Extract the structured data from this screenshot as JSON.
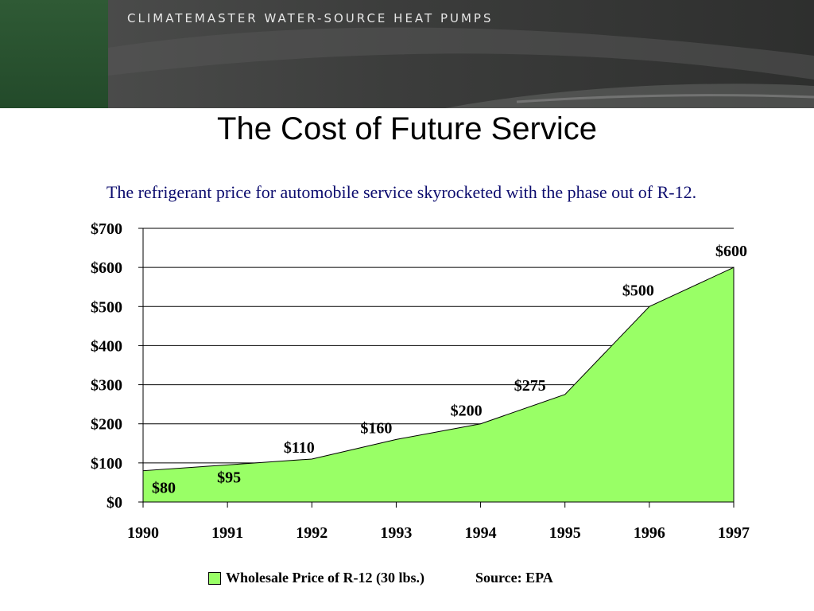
{
  "header": {
    "brand": "CLIMATEMASTER WATER-SOURCE HEAT PUMPS",
    "green": "#2f5a35",
    "dark": "#3a3b3a"
  },
  "slide": {
    "title": "The Cost of Future Service",
    "subtitle": "The refrigerant price for automobile service skyrocketed with the phase out of R-12."
  },
  "legend": {
    "label": "Wholesale Price of R-12  (30 lbs.)",
    "source": "Source:  EPA"
  },
  "chart_data": {
    "type": "area",
    "x": [
      "1990",
      "1991",
      "1992",
      "1993",
      "1994",
      "1995",
      "1996",
      "1997"
    ],
    "series": [
      {
        "name": "Wholesale Price of R-12  (30 lbs.)",
        "values": [
          80,
          95,
          110,
          160,
          200,
          275,
          500,
          600
        ],
        "labels": [
          "$80",
          "$95",
          "$110",
          "$160",
          "$200",
          "$275",
          "$500",
          "$600"
        ],
        "color": "#99ff66"
      }
    ],
    "ylim": [
      0,
      700
    ],
    "yticks": [
      0,
      100,
      200,
      300,
      400,
      500,
      600,
      700
    ],
    "ytick_labels": [
      "$0",
      "$100",
      "$200",
      "$300",
      "$400",
      "$500",
      "$600",
      "$700"
    ],
    "grid": true,
    "legend_position": "bottom"
  }
}
